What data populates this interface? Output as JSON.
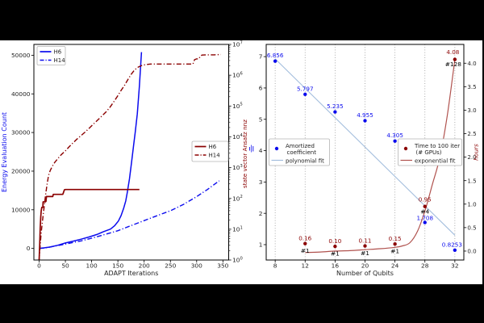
{
  "background_color": "#000000",
  "figure_background": "#ffffff",
  "colors": {
    "blue": "#0b0bee",
    "darkred": "#8b0000",
    "poly_fit": "#a3bedd",
    "exp_fit": "#b0524e",
    "tick_text": "#222222",
    "grid": "#999999"
  },
  "chart_data": [
    {
      "id": "adapt-iterations-chart",
      "type": "line",
      "xlabel": "ADAPT Iterations",
      "ylabel_left": "Energy Evaluation Count",
      "ylabel_right": "state vector Ansatz nnz",
      "right_ylabel_annotation": "tiny-blue-fraction-icon",
      "xlim": [
        -10,
        361
      ],
      "x_ticks": [
        0,
        50,
        100,
        150,
        200,
        250,
        300,
        350
      ],
      "ylim_left": [
        -3000,
        52800
      ],
      "y_ticks_left": [
        0,
        10000,
        20000,
        30000,
        40000,
        50000
      ],
      "log_exponents_right": [
        0,
        1,
        2,
        3,
        4,
        5,
        6,
        7
      ],
      "series": [
        {
          "name": "H6",
          "axis": "left",
          "color": "blue",
          "dash": "solid",
          "width": 1.5,
          "points": [
            [
              0,
              0
            ],
            [
              10,
              150
            ],
            [
              20,
              350
            ],
            [
              35,
              800
            ],
            [
              50,
              1400
            ],
            [
              65,
              1900
            ],
            [
              80,
              2400
            ],
            [
              95,
              2950
            ],
            [
              110,
              3600
            ],
            [
              122,
              4300
            ],
            [
              136,
              5000
            ],
            [
              144,
              5900
            ],
            [
              151,
              7100
            ],
            [
              156,
              8500
            ],
            [
              161,
              10400
            ],
            [
              165,
              12300
            ],
            [
              168,
              14600
            ],
            [
              172,
              18000
            ],
            [
              176,
              22300
            ],
            [
              180,
              26800
            ],
            [
              183,
              30000
            ],
            [
              187,
              34800
            ],
            [
              191,
              42000
            ],
            [
              195,
              50800
            ]
          ]
        },
        {
          "name": "H14",
          "axis": "left",
          "color": "blue",
          "dash": "dashdot",
          "width": 1.4,
          "points": [
            [
              0,
              0
            ],
            [
              8,
              80
            ],
            [
              18,
              280
            ],
            [
              30,
              600
            ],
            [
              45,
              1000
            ],
            [
              60,
              1400
            ],
            [
              80,
              1950
            ],
            [
              100,
              2640
            ],
            [
              125,
              3600
            ],
            [
              150,
              4580
            ],
            [
              175,
              5900
            ],
            [
              200,
              7200
            ],
            [
              225,
              8500
            ],
            [
              250,
              9750
            ],
            [
              275,
              11400
            ],
            [
              300,
              13400
            ],
            [
              320,
              15200
            ],
            [
              343,
              17500
            ]
          ]
        },
        {
          "name": "H6",
          "axis": "right",
          "color": "darkred",
          "dash": "solid",
          "width": 1.7,
          "points": [
            [
              0,
              1
            ],
            [
              1,
              3
            ],
            [
              2,
              10
            ],
            [
              3,
              25
            ],
            [
              4,
              40
            ],
            [
              5,
              51
            ],
            [
              7,
              51
            ],
            [
              7.5,
              77
            ],
            [
              12,
              77
            ],
            [
              13,
              80
            ],
            [
              14,
              115
            ],
            [
              26,
              115
            ],
            [
              27,
              135
            ],
            [
              45,
              135
            ],
            [
              46,
              150
            ],
            [
              48,
              190
            ],
            [
              50,
              195
            ],
            [
              100,
              195
            ],
            [
              150,
              195
            ],
            [
              191,
              195
            ]
          ]
        },
        {
          "name": "H14",
          "axis": "right",
          "color": "darkred",
          "dash": "dashdot",
          "width": 1.4,
          "points": [
            [
              0,
              1
            ],
            [
              2,
              3
            ],
            [
              4,
              8
            ],
            [
              6,
              16
            ],
            [
              8,
              32
            ],
            [
              10,
              60
            ],
            [
              12,
              120
            ],
            [
              15,
              280
            ],
            [
              18,
              560
            ],
            [
              21,
              800
            ],
            [
              25,
              1100
            ],
            [
              30,
              1500
            ],
            [
              36,
              2000
            ],
            [
              42,
              2600
            ],
            [
              50,
              3500
            ],
            [
              57,
              4700
            ],
            [
              64,
              6200
            ],
            [
              72,
              8400
            ],
            [
              80,
              11000
            ],
            [
              88,
              14500
            ],
            [
              96,
              19500
            ],
            [
              104,
              26500
            ],
            [
              112,
              35500
            ],
            [
              120,
              48000
            ],
            [
              128,
              66000
            ],
            [
              135,
              92000
            ],
            [
              142,
              135000
            ],
            [
              149,
              205000
            ],
            [
              156,
              320000
            ],
            [
              163,
              480000
            ],
            [
              169,
              720000
            ],
            [
              175,
              1050000
            ],
            [
              182,
              1500000
            ],
            [
              189,
              1850000
            ],
            [
              196,
              2080000
            ],
            [
              204,
              2230000
            ],
            [
              212,
              2300000
            ],
            [
              240,
              2300000
            ],
            [
              270,
              2300000
            ],
            [
              293,
              2300000
            ],
            [
              296,
              3200000
            ],
            [
              300,
              3400000
            ],
            [
              304,
              3400000
            ],
            [
              307,
              4100000
            ],
            [
              310,
              4500000
            ],
            [
              320,
              4600000
            ],
            [
              333,
              4600000
            ],
            [
              346,
              4700000
            ]
          ]
        }
      ],
      "legends": [
        {
          "position": "upper-left",
          "entries": [
            {
              "label": "H6",
              "color": "blue",
              "dash": "solid"
            },
            {
              "label": "H14",
              "color": "blue",
              "dash": "dashdot"
            }
          ]
        },
        {
          "position": "middle-right",
          "entries": [
            {
              "label": "H6",
              "color": "darkred",
              "dash": "solid"
            },
            {
              "label": "H14",
              "color": "darkred",
              "dash": "dashdot"
            }
          ]
        }
      ]
    },
    {
      "id": "qubits-scaling-chart",
      "type": "scatter",
      "xlabel": "Number of Qubits",
      "ylabel_right": "hours",
      "xlim": [
        6.8,
        33.2
      ],
      "x_ticks": [
        8,
        12,
        16,
        20,
        24,
        28,
        32
      ],
      "ylim_left": [
        0.51,
        7.39
      ],
      "y_ticks_left": [
        1,
        2,
        3,
        4,
        5,
        6,
        7
      ],
      "ylim_right": [
        -0.19,
        4.4
      ],
      "y_ticks_right": [
        0.0,
        0.5,
        1.0,
        1.5,
        2.0,
        2.5,
        3.0,
        3.5,
        4.0
      ],
      "grid_x": true,
      "blue_points": {
        "x": [
          8,
          12,
          16,
          20,
          24,
          28,
          32
        ],
        "y": [
          6.856,
          5.797,
          5.235,
          4.955,
          4.305,
          1.708,
          0.8253
        ],
        "labels": [
          "6.856",
          "5.797",
          "5.235",
          "4.955",
          "4.305",
          "1.708",
          "0.8253"
        ]
      },
      "red_points": {
        "x": [
          12,
          16,
          20,
          24,
          28,
          32
        ],
        "hours": [
          0.16,
          0.1,
          0.11,
          0.15,
          0.95,
          4.08
        ],
        "value_labels": [
          "0.16",
          "0.10",
          "0.11",
          "0.15",
          "0.95",
          "4.08"
        ],
        "gpu_labels": [
          "#1",
          "#1",
          "#1",
          "#1",
          "#4",
          "#128"
        ]
      },
      "fits": [
        {
          "name": "polynomial fit",
          "axis": "left",
          "color": "poly_fit",
          "width": 1.1,
          "points": [
            [
              8,
              6.93
            ],
            [
              32,
              1.3
            ]
          ]
        },
        {
          "name": "exponential fit",
          "axis": "right",
          "color": "exp_fit",
          "width": 1.2,
          "points": [
            [
              12,
              -0.03
            ],
            [
              14,
              -0.02
            ],
            [
              16,
              0.0
            ],
            [
              18,
              0.01
            ],
            [
              20,
              0.03
            ],
            [
              22,
              0.05
            ],
            [
              24,
              0.08
            ],
            [
              25,
              0.11
            ],
            [
              26,
              0.18
            ],
            [
              27,
              0.42
            ],
            [
              28,
              0.85
            ],
            [
              29,
              1.42
            ],
            [
              30,
              2.0
            ],
            [
              31,
              2.9
            ],
            [
              32,
              4.08
            ]
          ]
        }
      ],
      "legends": [
        {
          "position": "middle-left",
          "entries": [
            {
              "marker": "dot",
              "color": "blue",
              "label": [
                "Amortized",
                "coefficient"
              ]
            },
            {
              "marker": "line",
              "color": "poly_fit",
              "label": [
                "polynomial fit"
              ]
            }
          ]
        },
        {
          "position": "middle-right",
          "entries": [
            {
              "marker": "dot",
              "color": "darkred",
              "label": [
                "Time to 100 iter",
                "(# GPUs)"
              ]
            },
            {
              "marker": "line",
              "color": "exp_fit",
              "label": [
                "exponential fit"
              ]
            }
          ]
        }
      ]
    }
  ]
}
